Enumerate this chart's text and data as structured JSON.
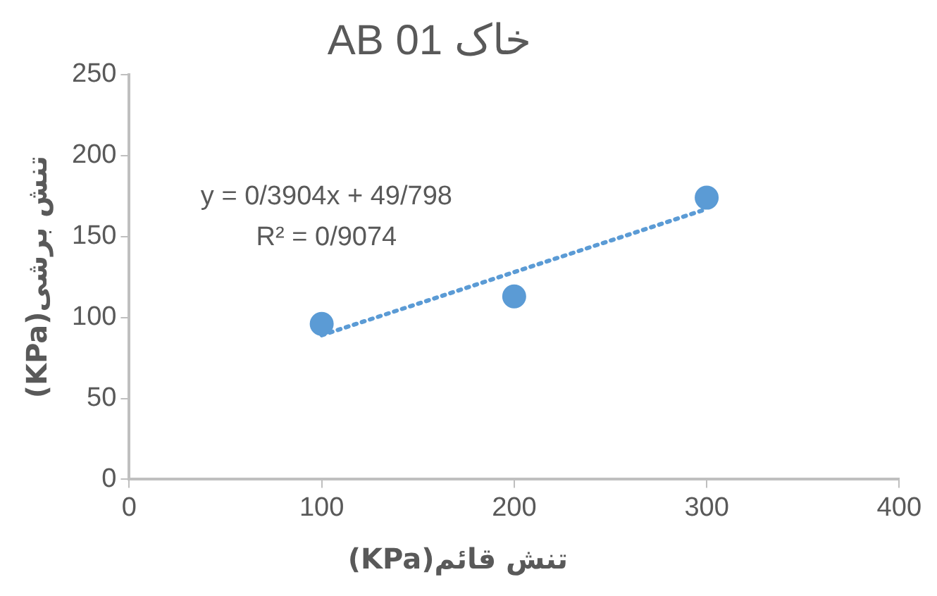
{
  "chart_data": {
    "type": "scatter",
    "title": "AB 01 خاک",
    "xlabel": "تنش قائم(KPa)",
    "ylabel": "تنش برشی(KPa)",
    "x": [
      100,
      200,
      300
    ],
    "series": [
      {
        "type": "scatter",
        "color": "#5b9bd5",
        "values": [
          96,
          113,
          174
        ],
        "marker": "circle"
      },
      {
        "type": "line",
        "color": "#5b9bd5",
        "x": [
          100,
          300
        ],
        "values": [
          89,
          167
        ],
        "line_style": "dotted",
        "marker": "none"
      }
    ],
    "annotations": [
      "y = 0/3904x + 49/798",
      "R² = 0/9074"
    ],
    "xlim": [
      0,
      400
    ],
    "xticks": [
      0,
      100,
      200,
      300,
      400
    ],
    "ylim": [
      0,
      250
    ],
    "yticks": [
      0,
      50,
      100,
      150,
      200,
      250
    ],
    "grid": false,
    "legend": false
  }
}
